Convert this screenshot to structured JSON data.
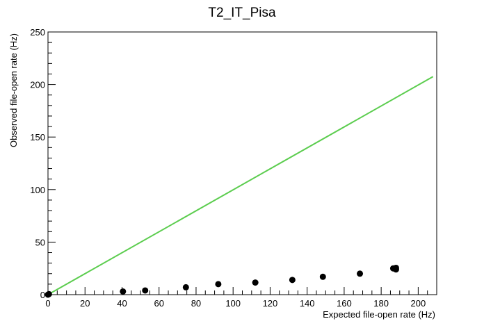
{
  "chart_data": {
    "type": "scatter",
    "title": "T2_IT_Pisa",
    "xlabel": "Expected file-open rate (Hz)",
    "ylabel": "Observed file-open rate (Hz)",
    "xlim": [
      0,
      210
    ],
    "ylim": [
      0,
      250
    ],
    "x_ticks": [
      0,
      20,
      40,
      60,
      80,
      100,
      120,
      140,
      160,
      180,
      200
    ],
    "y_ticks": [
      0,
      50,
      100,
      150,
      200,
      250
    ],
    "grid": false,
    "series": [
      {
        "kind": "points",
        "color": "#000000",
        "x": [
          0,
          0.5,
          40.5,
          52.5,
          74.5,
          92,
          112,
          132,
          148.5,
          168.5,
          186.5,
          188,
          188
        ],
        "y": [
          0,
          0.5,
          3,
          4,
          7,
          10,
          11.5,
          14,
          17,
          20,
          25,
          24,
          25.5
        ]
      },
      {
        "kind": "line",
        "color": "#5ccd4f",
        "x": [
          0,
          208
        ],
        "y": [
          0,
          207.5
        ]
      }
    ]
  }
}
